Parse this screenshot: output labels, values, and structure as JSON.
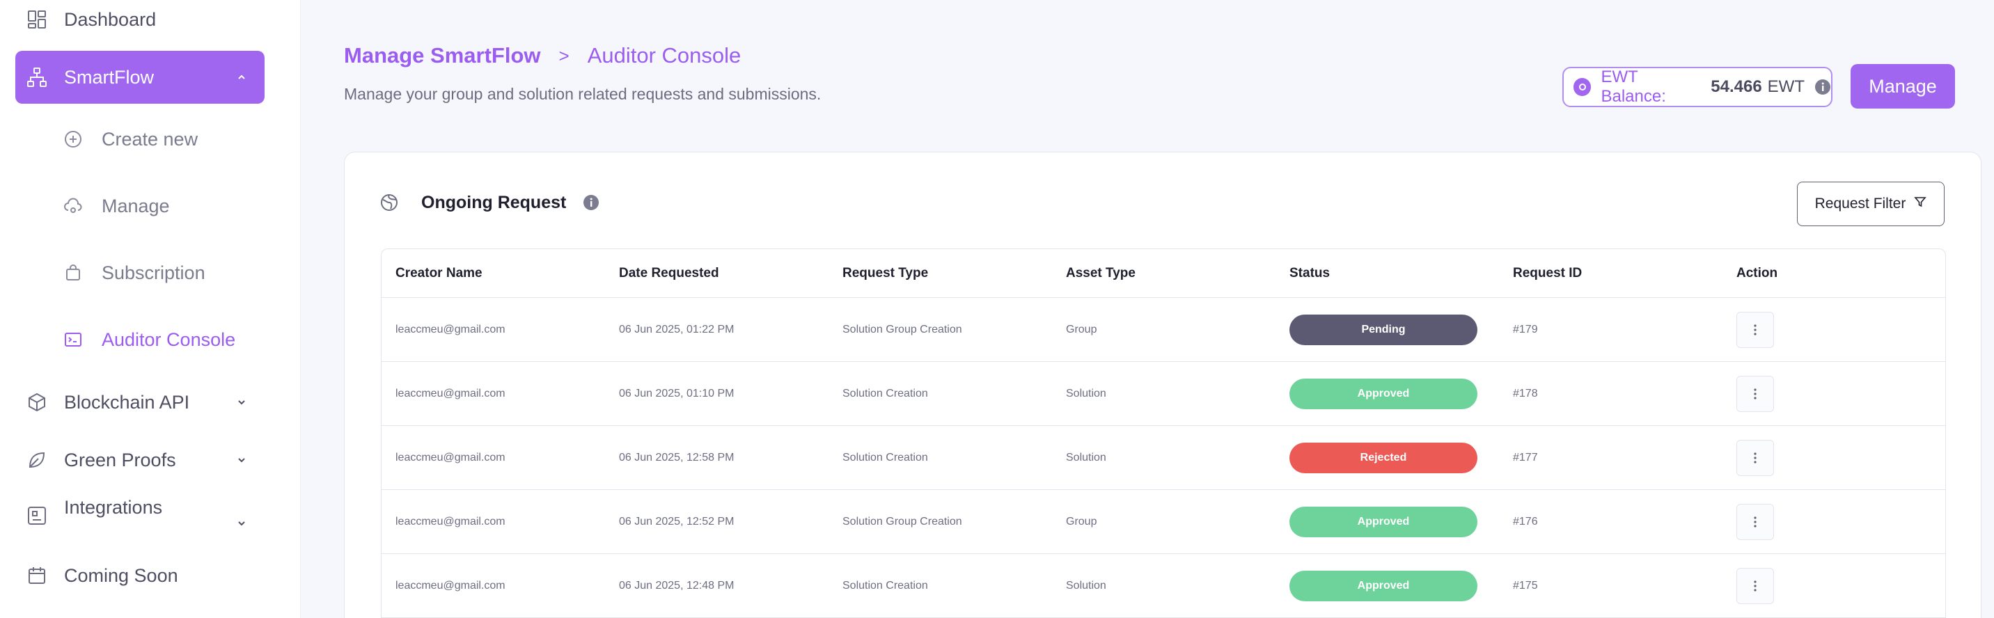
{
  "sidebar": {
    "items": [
      {
        "label": "Dashboard",
        "icon": "dashboard-icon"
      },
      {
        "label": "SmartFlow",
        "icon": "flow-icon"
      },
      {
        "label": "Blockchain API",
        "icon": "cube-icon"
      },
      {
        "label": "Green Proofs",
        "icon": "leaf-icon"
      },
      {
        "label": "Integrations",
        "icon": "integrations-icon"
      },
      {
        "label": "Coming Soon",
        "icon": "calendar-icon"
      }
    ],
    "smartflow_sub": [
      {
        "label": "Create new",
        "icon": "plus-circle-icon"
      },
      {
        "label": "Manage",
        "icon": "cloud-gear-icon"
      },
      {
        "label": "Subscription",
        "icon": "bag-icon"
      },
      {
        "label": "Auditor Console",
        "icon": "console-icon"
      }
    ]
  },
  "header": {
    "breadcrumb_root": "Manage SmartFlow",
    "breadcrumb_sep": ">",
    "breadcrumb_current": "Auditor Console",
    "subtitle": "Manage your group and solution related requests and submissions.",
    "ewt_label": "EWT Balance:",
    "ewt_amount": "54.466",
    "ewt_unit": "EWT",
    "manage_label": "Manage"
  },
  "card": {
    "title": "Ongoing Request",
    "filter_label": "Request Filter",
    "columns": [
      "Creator Name",
      "Date Requested",
      "Request Type",
      "Asset Type",
      "Status",
      "Request ID",
      "Action"
    ],
    "rows": [
      {
        "creator": "leaccmeu@gmail.com",
        "date": "06 Jun 2025, 01:22 PM",
        "type": "Solution Group Creation",
        "asset": "Group",
        "status": "Pending",
        "id": "#179"
      },
      {
        "creator": "leaccmeu@gmail.com",
        "date": "06 Jun 2025, 01:10 PM",
        "type": "Solution Creation",
        "asset": "Solution",
        "status": "Approved",
        "id": "#178"
      },
      {
        "creator": "leaccmeu@gmail.com",
        "date": "06 Jun 2025, 12:58 PM",
        "type": "Solution Creation",
        "asset": "Solution",
        "status": "Rejected",
        "id": "#177"
      },
      {
        "creator": "leaccmeu@gmail.com",
        "date": "06 Jun 2025, 12:52 PM",
        "type": "Solution Group Creation",
        "asset": "Group",
        "status": "Approved",
        "id": "#176"
      },
      {
        "creator": "leaccmeu@gmail.com",
        "date": "06 Jun 2025, 12:48 PM",
        "type": "Solution Creation",
        "asset": "Solution",
        "status": "Approved",
        "id": "#175"
      }
    ]
  },
  "colors": {
    "accent": "#a066f0",
    "pending": "#5b5a72",
    "approved": "#6dd39b",
    "rejected": "#ec5a55"
  }
}
